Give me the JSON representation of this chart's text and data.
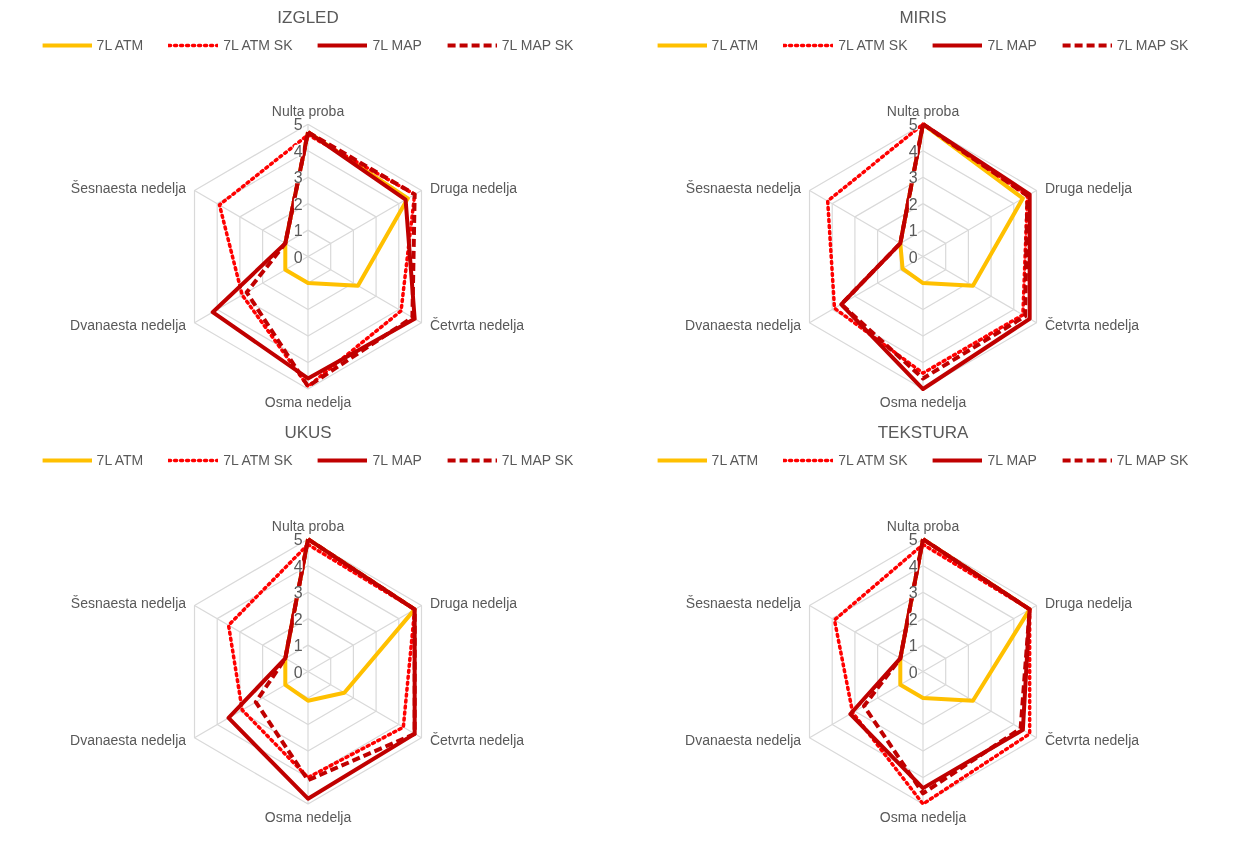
{
  "chart_data": [
    {
      "type": "radar",
      "title": "IZGLED",
      "categories": [
        "Nulta proba",
        "Druga nedelja",
        "Četvrta nedelja",
        "Osma nedelja",
        "Dvanaesta nedelja",
        "Šesnaesta nedelja"
      ],
      "ylim": [
        0,
        5
      ],
      "yticks": [
        0,
        1,
        2,
        3,
        4,
        5
      ],
      "legend": "top",
      "marker": "none",
      "series": [
        {
          "name": "7L ATM",
          "color": "#ffc000",
          "line_style": "solid",
          "values": [
            4.7,
            4.4,
            2.2,
            1.0,
            1.0,
            1.0
          ]
        },
        {
          "name": "7L ATM SK",
          "color": "#ff0000",
          "line_style": "dotted",
          "values": [
            4.6,
            4.7,
            4.1,
            4.9,
            2.9,
            3.9
          ]
        },
        {
          "name": "7L MAP",
          "color": "#c00000",
          "line_style": "solid",
          "values": [
            4.7,
            4.3,
            4.7,
            4.6,
            4.2,
            1.0
          ]
        },
        {
          "name": "7L MAP SK",
          "color": "#c00000",
          "line_style": "dashed",
          "values": [
            4.7,
            4.7,
            4.6,
            4.9,
            2.7,
            1.0
          ]
        }
      ]
    },
    {
      "type": "radar",
      "title": "MIRIS",
      "categories": [
        "Nulta proba",
        "Druga nedelja",
        "Četvrta nedelja",
        "Osma nedelja",
        "Dvanaesta nedelja",
        "Šesnaesta nedelja"
      ],
      "ylim": [
        0,
        5
      ],
      "yticks": [
        0,
        1,
        2,
        3,
        4,
        5
      ],
      "legend": "top",
      "marker": "none",
      "series": [
        {
          "name": "7L ATM",
          "color": "#ffc000",
          "line_style": "solid",
          "values": [
            5,
            4.4,
            2.2,
            1.0,
            0.9,
            1.0
          ]
        },
        {
          "name": "7L ATM SK",
          "color": "#ff0000",
          "line_style": "dotted",
          "values": [
            5,
            4.6,
            4.4,
            4.4,
            3.9,
            4.2
          ]
        },
        {
          "name": "7L MAP",
          "color": "#c00000",
          "line_style": "solid",
          "values": [
            5,
            4.7,
            4.7,
            5,
            3.6,
            1.0
          ]
        },
        {
          "name": "7L MAP SK",
          "color": "#c00000",
          "line_style": "dashed",
          "values": [
            5,
            4.6,
            4.5,
            4.6,
            3.6,
            1.0
          ]
        }
      ]
    },
    {
      "type": "radar",
      "title": "UKUS",
      "categories": [
        "Nulta proba",
        "Druga nedelja",
        "Četvrta nedelja",
        "Osma nedelja",
        "Dvanaesta nedelja",
        "Šesnaesta nedelja"
      ],
      "ylim": [
        0,
        5
      ],
      "yticks": [
        0,
        1,
        2,
        3,
        4,
        5
      ],
      "legend": "top",
      "marker": "none",
      "series": [
        {
          "name": "7L ATM",
          "color": "#ffc000",
          "line_style": "solid",
          "values": [
            5,
            4.7,
            1.6,
            1.1,
            1.0,
            1.0
          ]
        },
        {
          "name": "7L ATM SK",
          "color": "#ff0000",
          "line_style": "dotted",
          "values": [
            4.8,
            4.7,
            4.2,
            4.0,
            2.9,
            3.5
          ]
        },
        {
          "name": "7L MAP",
          "color": "#c00000",
          "line_style": "solid",
          "values": [
            5,
            4.7,
            4.7,
            4.8,
            3.5,
            1.0
          ]
        },
        {
          "name": "7L MAP SK",
          "color": "#c00000",
          "line_style": "dashed",
          "values": [
            5,
            4.7,
            4.7,
            4.1,
            2.3,
            1.0
          ]
        }
      ]
    },
    {
      "type": "radar",
      "title": "TEKSTURA",
      "categories": [
        "Nulta proba",
        "Druga nedelja",
        "Četvrta nedelja",
        "Osma nedelja",
        "Dvanaesta nedelja",
        "Šesnaesta nedelja"
      ],
      "ylim": [
        0,
        5
      ],
      "yticks": [
        0,
        1,
        2,
        3,
        4,
        5
      ],
      "legend": "top",
      "marker": "none",
      "series": [
        {
          "name": "7L ATM",
          "color": "#ffc000",
          "line_style": "solid",
          "values": [
            5,
            4.7,
            2.2,
            1.0,
            1.0,
            1.0
          ]
        },
        {
          "name": "7L ATM SK",
          "color": "#ff0000",
          "line_style": "dotted",
          "values": [
            4.8,
            4.7,
            4.7,
            5,
            3.1,
            3.9
          ]
        },
        {
          "name": "7L MAP",
          "color": "#c00000",
          "line_style": "solid",
          "values": [
            5,
            4.7,
            4.4,
            4.4,
            3.2,
            1.0
          ]
        },
        {
          "name": "7L MAP SK",
          "color": "#c00000",
          "line_style": "dashed",
          "values": [
            5,
            4.7,
            4.3,
            4.6,
            2.6,
            1.0
          ]
        }
      ]
    }
  ]
}
